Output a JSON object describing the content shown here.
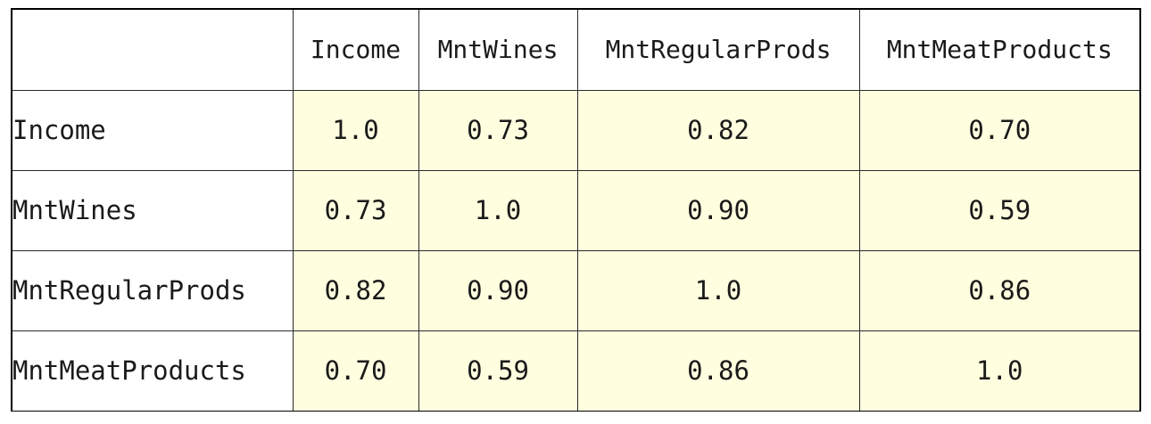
{
  "table": {
    "corner": "",
    "columns": [
      "Income",
      "MntWines",
      "MntRegularProds",
      "MntMeatProducts"
    ],
    "rows": [
      {
        "label": "Income",
        "values": [
          "1.0",
          "0.73",
          "0.82",
          "0.70"
        ]
      },
      {
        "label": "MntWines",
        "values": [
          "0.73",
          "1.0",
          "0.90",
          "0.59"
        ]
      },
      {
        "label": "MntRegularProds",
        "values": [
          "0.82",
          "0.90",
          "1.0",
          "0.86"
        ]
      },
      {
        "label": "MntMeatProducts",
        "values": [
          "0.70",
          "0.59",
          "0.86",
          "1.0"
        ]
      }
    ],
    "colors": {
      "cell_background": "#ffffe0",
      "header_background": "#ffffff",
      "border": "#000000"
    }
  }
}
